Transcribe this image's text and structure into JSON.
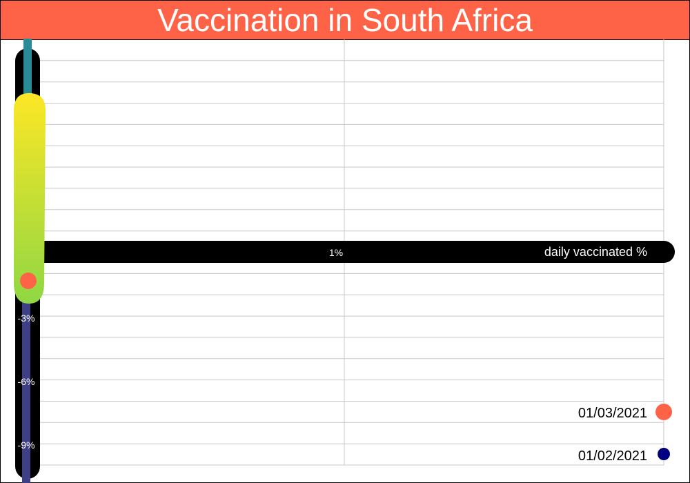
{
  "chart_data": {
    "type": "line",
    "title": "Vaccination in South Africa",
    "xlabel": "daily vaccinated %",
    "x_tick_labels": [
      "1%"
    ],
    "y_tick_labels": [
      "-3%",
      "-6%",
      "-9%"
    ],
    "legend": [
      {
        "label": "01/03/2021",
        "color": "#ff6347"
      },
      {
        "label": "01/02/2021",
        "color": "#000080"
      }
    ],
    "grid": true,
    "legend_position": "bottom-right",
    "colors": {
      "title_bar": "#ff6347",
      "axis_bar": "#000000",
      "teal_line": "#2a8a96",
      "purple_line": "#3f3f85",
      "marker": "#ff6347",
      "blob_top": "#fde725",
      "blob_bottom": "#8fd744"
    }
  }
}
